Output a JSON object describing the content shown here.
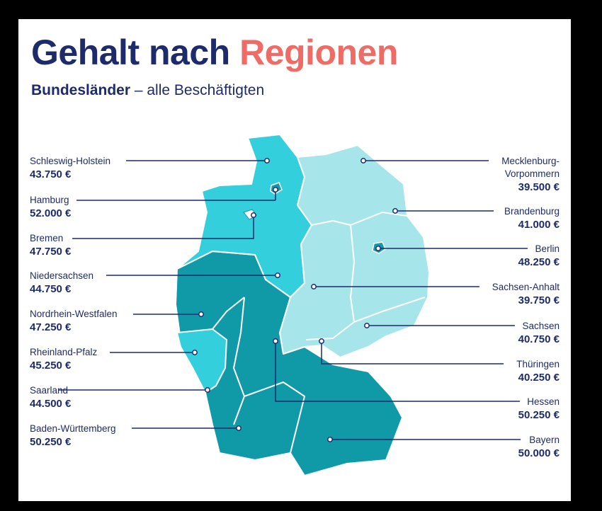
{
  "title": {
    "part1": "Gehalt nach",
    "part2": "Regionen"
  },
  "subtitle": {
    "bold": "Bundesländer",
    "rest": " – alle Beschäftigten"
  },
  "colors": {
    "navy": "#1d2b6b",
    "coral": "#ee6b66",
    "high": "#109aa7",
    "mid": "#33cfdc",
    "low": "#a6e5ea"
  },
  "regions": [
    {
      "name": "Schleswig-Holstein",
      "value": "43.750 €"
    },
    {
      "name": "Hamburg",
      "value": "52.000 €"
    },
    {
      "name": "Bremen",
      "value": "47.750 €"
    },
    {
      "name": "Niedersachsen",
      "value": "44.750 €"
    },
    {
      "name": "Nordrhein-Westfalen",
      "value": "47.250 €"
    },
    {
      "name": "Rheinland-Pfalz",
      "value": "45.250 €"
    },
    {
      "name": "Saarland",
      "value": "44.500 €"
    },
    {
      "name": "Baden-Württemberg",
      "value": "50.250 €"
    },
    {
      "name": "Mecklenburg-Vorpommern",
      "name_line1": "Mecklenburg-",
      "name_line2": "Vorpommern",
      "value": "39.500 €"
    },
    {
      "name": "Brandenburg",
      "value": "41.000 €"
    },
    {
      "name": "Berlin",
      "value": "48.250 €"
    },
    {
      "name": "Sachsen-Anhalt",
      "value": "39.750 €"
    },
    {
      "name": "Sachsen",
      "value": "40.750 €"
    },
    {
      "name": "Thüringen",
      "value": "40.250 €"
    },
    {
      "name": "Hessen",
      "value": "50.250 €"
    },
    {
      "name": "Bayern",
      "value": "50.000 €"
    }
  ]
}
